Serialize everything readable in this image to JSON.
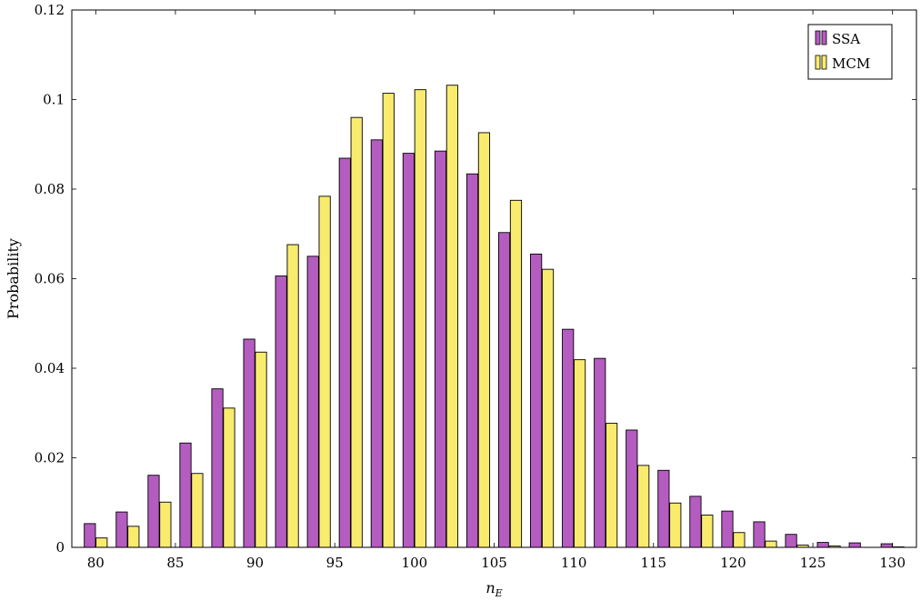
{
  "chart_data": {
    "type": "bar",
    "title": "",
    "xlabel": "n",
    "xlabel_sub": "E",
    "ylabel": "Probability",
    "xlim": [
      78.5,
      131.5
    ],
    "ylim": [
      0,
      0.12
    ],
    "grid": false,
    "legend_position": "top-right",
    "x_ticks": [
      80,
      85,
      90,
      95,
      100,
      105,
      110,
      115,
      120,
      125,
      130
    ],
    "x_tick_labels": [
      "80",
      "85",
      "90",
      "95",
      "100",
      "105",
      "110",
      "115",
      "120",
      "125",
      "130"
    ],
    "y_ticks": [
      0,
      0.02,
      0.04,
      0.06,
      0.08,
      0.1,
      0.12
    ],
    "y_tick_labels": [
      "0",
      "0.02",
      "0.04",
      "0.06",
      "0.08",
      "0.1",
      "0.12"
    ],
    "categories": [
      80,
      82,
      84,
      86,
      88,
      90,
      92,
      94,
      96,
      98,
      100,
      102,
      104,
      106,
      108,
      110,
      112,
      114,
      116,
      118,
      120,
      122,
      124,
      126,
      128,
      130
    ],
    "series": [
      {
        "name": "SSA",
        "color": "#b45cc0",
        "values": [
          0.0053,
          0.0079,
          0.0161,
          0.0233,
          0.0354,
          0.0465,
          0.0606,
          0.065,
          0.0869,
          0.091,
          0.088,
          0.0885,
          0.0834,
          0.0703,
          0.0655,
          0.0487,
          0.0422,
          0.0262,
          0.0172,
          0.0114,
          0.0081,
          0.0057,
          0.0029,
          0.0011,
          0.001,
          0.0008
        ]
      },
      {
        "name": "MCM",
        "color": "#f9eb6e",
        "values": [
          0.0021,
          0.0047,
          0.0101,
          0.0165,
          0.0311,
          0.0436,
          0.0676,
          0.0784,
          0.096,
          0.1014,
          0.1022,
          0.1032,
          0.0926,
          0.0775,
          0.0621,
          0.0419,
          0.0277,
          0.0183,
          0.0099,
          0.0072,
          0.0033,
          0.0014,
          0.0005,
          0.0003,
          0.0,
          0.0001
        ]
      }
    ]
  }
}
